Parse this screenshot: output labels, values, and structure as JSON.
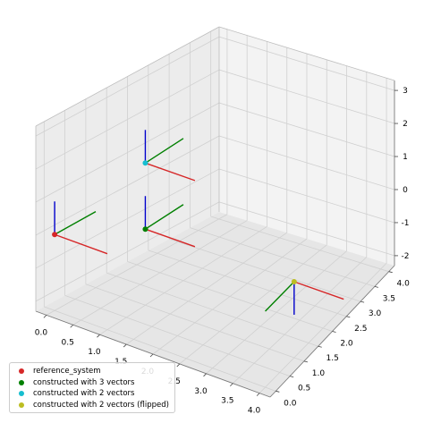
{
  "chart_data": {
    "type": "scatter",
    "projection": "3d",
    "grid": true,
    "legend_placement": "lower-left",
    "title": "",
    "xlabel": "",
    "ylabel": "",
    "zlabel": "",
    "xlim": [
      -0.2,
      4.2
    ],
    "ylim": [
      -0.2,
      4.2
    ],
    "zlim": [
      -2.3,
      3.3
    ],
    "x_ticks": [
      "0.0",
      "0.5",
      "1.0",
      "1.5",
      "2.0",
      "2.5",
      "3.0",
      "3.5",
      "4.0"
    ],
    "y_ticks": [
      "0.0",
      "0.5",
      "1.0",
      "1.5",
      "2.0",
      "2.5",
      "3.0",
      "3.5",
      "4.0"
    ],
    "z_ticks": [
      "-2",
      "-1",
      "0",
      "1",
      "2",
      "3"
    ],
    "axis_colors": {
      "x": "#d62728",
      "y": "#008000",
      "z": "#0000cc"
    },
    "series": [
      {
        "name": "reference_system",
        "color": "#d62728",
        "points": [
          {
            "origin": [
              0,
              0,
              0
            ],
            "axis_length": 1
          }
        ]
      },
      {
        "name": "constructed with 3 vectors",
        "color": "#008000",
        "points": [
          {
            "origin": [
              1,
              1,
              0
            ],
            "axis_length": 1
          }
        ]
      },
      {
        "name": "constructed with 2 vectors",
        "color": "#17becf",
        "points": [
          {
            "origin": [
              1,
              1,
              2
            ],
            "axis_length": 1
          }
        ]
      },
      {
        "name": "constructed with 2 vectors (flipped)",
        "color": "#bcbd22",
        "points": [
          {
            "origin": [
              4,
              1,
              0
            ],
            "axis_length": 1,
            "flipped": true
          }
        ]
      }
    ]
  }
}
